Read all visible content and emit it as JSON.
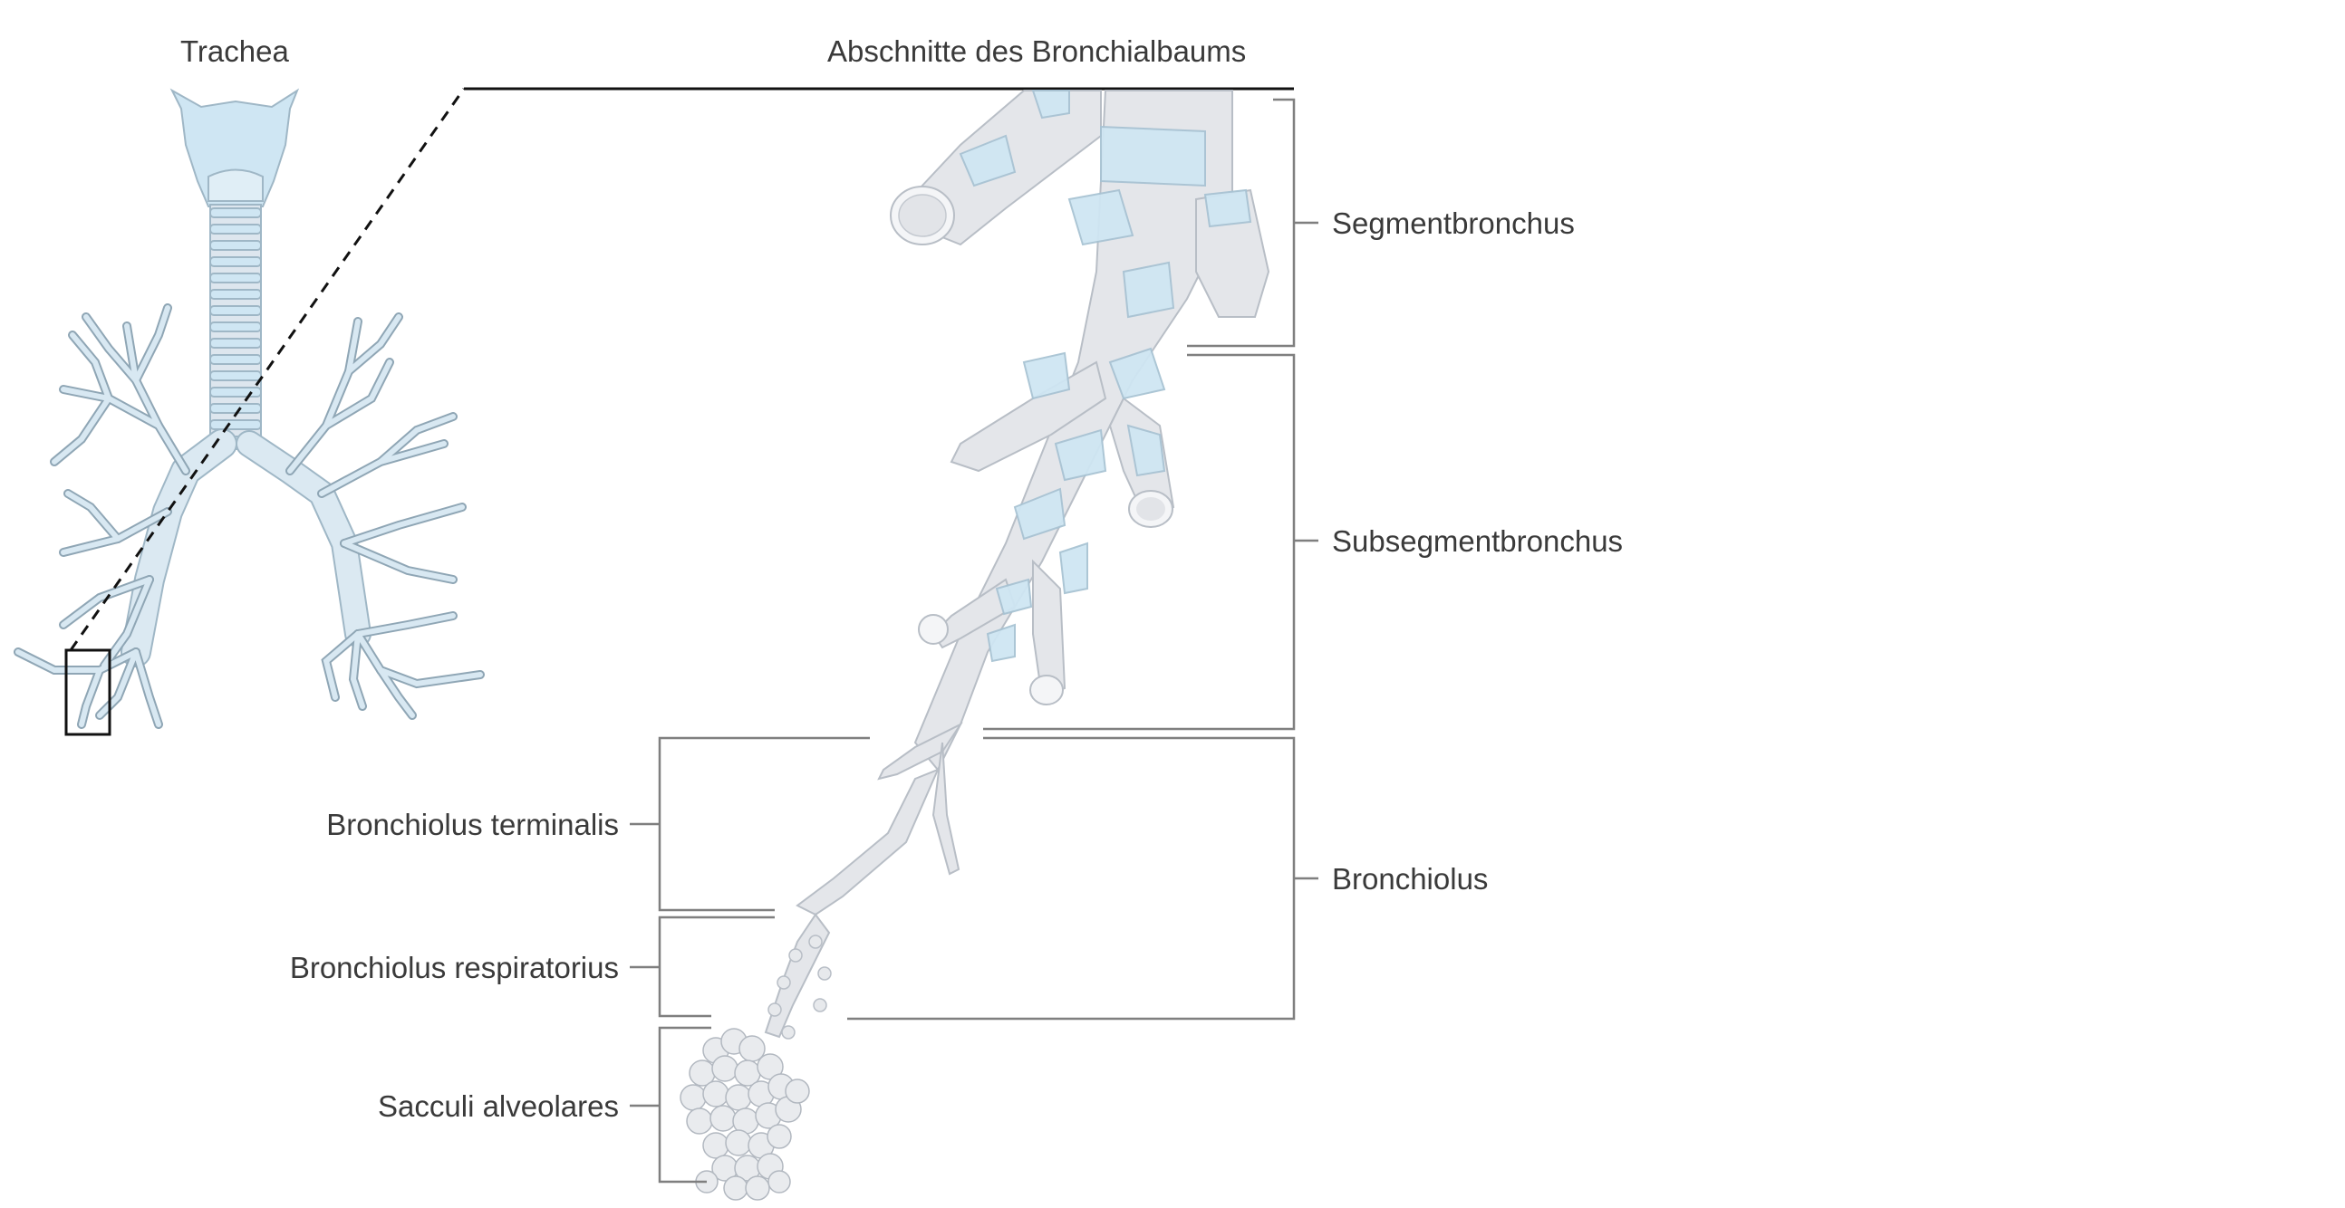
{
  "labels": {
    "trachea": "Trachea",
    "header": "Abschnitte des Bronchialbaums",
    "segmentbronchus": "Segmentbronchus",
    "subsegmentbronchus": "Subsegmentbronchus",
    "bronchiolus": "Bronchiolus",
    "bronchiolus_terminalis": "Bronchiolus terminalis",
    "bronchiolus_respiratorius": "Bronchiolus respiratorius",
    "sacculi_alveolares": "Sacculi alveolares"
  },
  "colors": {
    "cartilage": "#cfe6f3",
    "airway": "#e4e6ea",
    "outline": "#aeb4bc",
    "bracket": "#7f7f7f",
    "text": "#3a3a3a"
  }
}
